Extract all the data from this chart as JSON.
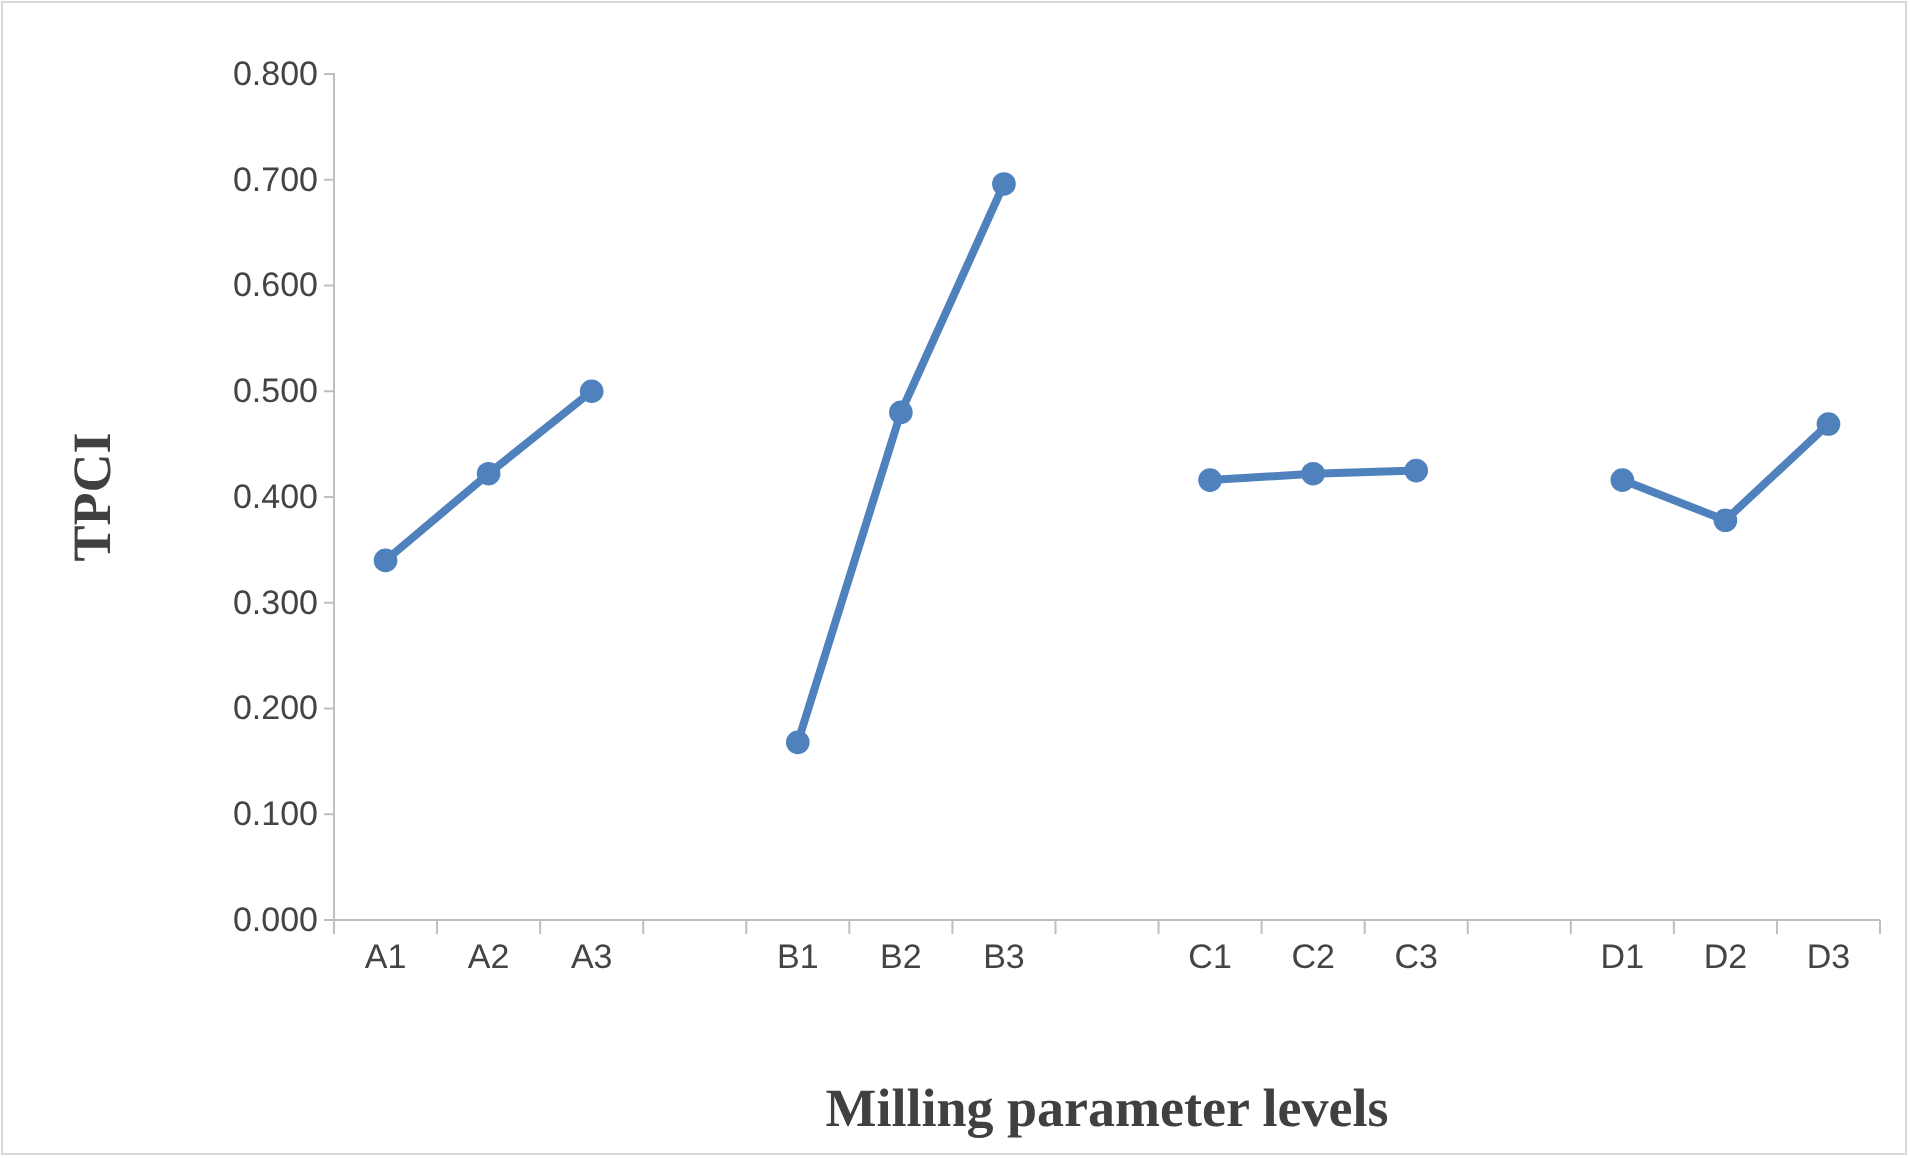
{
  "chart_data": {
    "type": "line",
    "xlabel": "Milling parameter levels",
    "ylabel": "TPCI",
    "categories": [
      "A1",
      "A2",
      "A3",
      null,
      "B1",
      "B2",
      "B3",
      null,
      "C1",
      "C2",
      "C3",
      null,
      "D1",
      "D2",
      "D3"
    ],
    "series": [
      {
        "color": "#4f81bd",
        "values": [
          0.34,
          0.422,
          0.5,
          null,
          0.168,
          0.48,
          0.696,
          null,
          0.416,
          0.422,
          0.425,
          null,
          0.416,
          0.378,
          0.469
        ]
      }
    ],
    "ylim": [
      0,
      0.8
    ],
    "yticks": [
      {
        "value": 0,
        "label": "0.000"
      },
      {
        "value": 0.1,
        "label": "0.100"
      },
      {
        "value": 0.2,
        "label": "0.200"
      },
      {
        "value": 0.3,
        "label": "0.300"
      },
      {
        "value": 0.4,
        "label": "0.400"
      },
      {
        "value": 0.5,
        "label": "0.500"
      },
      {
        "value": 0.6,
        "label": "0.600"
      },
      {
        "value": 0.7,
        "label": "0.700"
      },
      {
        "value": 0.8,
        "label": "0.800"
      }
    ],
    "grid": false,
    "legend": false,
    "marker": "circle",
    "line_style": "solid"
  }
}
